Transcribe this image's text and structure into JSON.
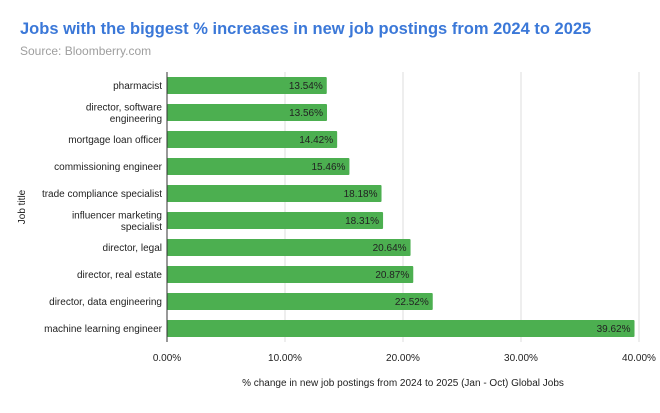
{
  "chart_data": {
    "type": "bar",
    "orientation": "horizontal",
    "title": "Jobs with the biggest % increases in new job postings from 2024 to 2025",
    "subtitle": "Source: Bloomberry.com",
    "xlabel": "% change in new job postings from 2024 to 2025 (Jan - Oct) Global Jobs",
    "ylabel": "Job title",
    "categories": [
      "pharmacist",
      "director, software engineering",
      "mortgage loan officer",
      "commissioning engineer",
      "trade compliance specialist",
      "influencer marketing specialist",
      "director, legal",
      "director, real estate",
      "director, data engineering",
      "machine learning engineer"
    ],
    "values": [
      13.54,
      13.56,
      14.42,
      15.46,
      18.18,
      18.31,
      20.64,
      20.87,
      22.52,
      39.62
    ],
    "data_labels": [
      "13.54%",
      "13.56%",
      "14.42%",
      "15.46%",
      "18.18%",
      "18.31%",
      "20.64%",
      "20.87%",
      "22.52%",
      "39.62%"
    ],
    "xlim": [
      0,
      40
    ],
    "xticks": [
      0,
      10,
      20,
      30,
      40
    ],
    "xtick_labels": [
      "0.00%",
      "10.00%",
      "20.00%",
      "30.00%",
      "40.00%"
    ],
    "grid": true,
    "legend": "none",
    "colors": {
      "bar": "#4caf50",
      "title": "#3b78d8",
      "subtitle": "#9e9e9e",
      "grid": "#dddddd"
    }
  }
}
